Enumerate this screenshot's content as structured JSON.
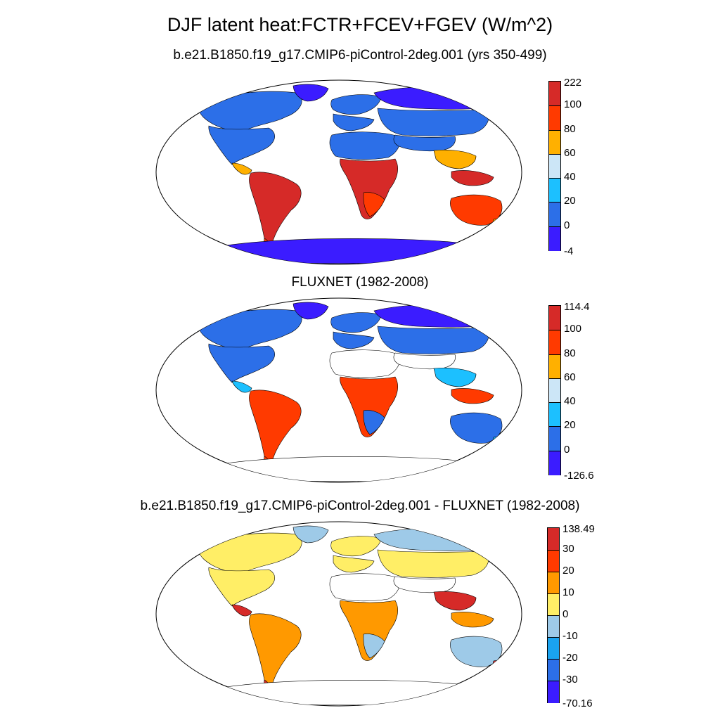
{
  "figure": {
    "title": "DJF latent heat:FCTR+FCEV+FGEV (W/m^2)"
  },
  "panels": [
    {
      "title": "b.e21.B1850.f19_g17.CMIP6-piControl-2deg.001 (yrs 350-499)",
      "colorbar": {
        "labels": [
          "222",
          "100",
          "80",
          "60",
          "40",
          "20",
          "0",
          "-4"
        ],
        "colors": [
          "#d62a28",
          "#ff3a00",
          "#ffb000",
          "#cce6f7",
          "#1cc0ff",
          "#2c6fe8",
          "#3b1cff"
        ]
      },
      "palette_by_region": {
        "arctic": "#3b1cff",
        "boreal": "#2c6fe8",
        "temperate": "#2c6fe8",
        "desert": "#2c6fe8",
        "tropics": "#d62a28",
        "subtropics": "#ff3a00",
        "savanna": "#ff3a00",
        "monsoon": "#ffb000",
        "antarctic": "#3b1cff"
      }
    },
    {
      "title": "FLUXNET (1982-2008)",
      "colorbar": {
        "labels": [
          "114.4",
          "100",
          "80",
          "60",
          "40",
          "20",
          "0",
          "-126.6"
        ],
        "colors": [
          "#d62a28",
          "#ff3a00",
          "#ffb000",
          "#cce6f7",
          "#1cc0ff",
          "#2c6fe8",
          "#3b1cff"
        ]
      },
      "palette_by_region": {
        "arctic": "#3b1cff",
        "boreal": "#2c6fe8",
        "temperate": "#2c6fe8",
        "desert": "#ffffff",
        "tropics": "#ff3a00",
        "subtropics": "#ff3a00",
        "savanna": "#2c6fe8",
        "monsoon": "#1cc0ff",
        "antarctic": "#ffffff"
      }
    },
    {
      "title": "b.e21.B1850.f19_g17.CMIP6-piControl-2deg.001 - FLUXNET (1982-2008)",
      "colorbar": {
        "labels": [
          "138.49",
          "30",
          "20",
          "10",
          "0",
          "-10",
          "-20",
          "-30",
          "-70.16"
        ],
        "colors": [
          "#d62a28",
          "#ff3a00",
          "#ff9900",
          "#ffee66",
          "#9ecae8",
          "#1aa3f0",
          "#2c6fe8",
          "#3b1cff"
        ]
      },
      "palette_by_region": {
        "arctic": "#9ecae8",
        "boreal": "#ffee66",
        "temperate": "#ffee66",
        "desert": "#ffffff",
        "tropics": "#ff9900",
        "subtropics": "#d62a28",
        "savanna": "#9ecae8",
        "monsoon": "#d62a28",
        "antarctic": "#ffffff"
      }
    }
  ]
}
